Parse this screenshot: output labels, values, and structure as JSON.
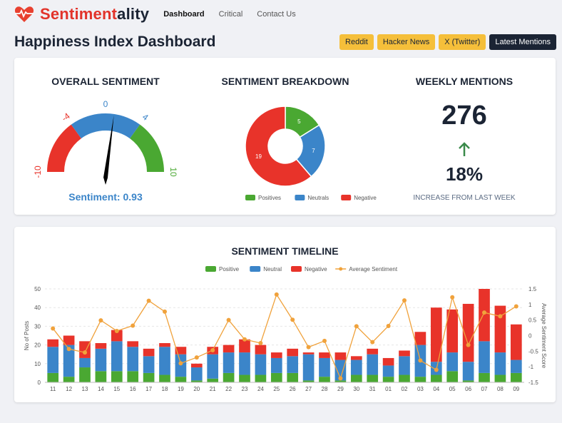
{
  "brand": {
    "name_red": "Sentiment",
    "name_dark": "ality"
  },
  "nav": [
    {
      "label": "Dashboard",
      "active": true
    },
    {
      "label": "Critical"
    },
    {
      "label": "Contact Us"
    }
  ],
  "page_title": "Happiness Index Dashboard",
  "buttons": [
    "Reddit",
    "Hacker News",
    "X (Twitter)",
    "Latest Mentions"
  ],
  "colors": {
    "positive": "#4aa832",
    "neutral": "#3b85c9",
    "negative": "#e8332a",
    "average": "#f0a23c",
    "button": "#f5bf3a",
    "dark": "#1b2434"
  },
  "overall": {
    "title": "OVERALL SENTIMENT",
    "ticks": [
      "-10",
      "-4",
      "0",
      "4",
      "10"
    ],
    "value": 0.93,
    "label": "Sentiment: 0.93",
    "range": [
      -10,
      10
    ]
  },
  "breakdown": {
    "title": "SENTIMENT BREAKDOWN",
    "slices": [
      {
        "name": "Positives",
        "value": 5
      },
      {
        "name": "Neutrals",
        "value": 7
      },
      {
        "name": "Negatives",
        "value": 19
      }
    ]
  },
  "weekly": {
    "title": "WEEKLY MENTIONS",
    "count": "276",
    "change": "18%",
    "caption": "INCREASE FROM LAST WEEK"
  },
  "chart_data": {
    "type": "bar",
    "title": "SENTIMENT TIMELINE",
    "stacked": true,
    "categories": [
      "11",
      "12",
      "13",
      "14",
      "15",
      "16",
      "17",
      "18",
      "19",
      "20",
      "21",
      "22",
      "23",
      "24",
      "25",
      "26",
      "27",
      "28",
      "29",
      "30",
      "31",
      "01",
      "02",
      "03",
      "04",
      "05",
      "06",
      "07",
      "08",
      "09"
    ],
    "series": [
      {
        "name": "Positive",
        "values": [
          5,
          3,
          8,
          6,
          6,
          6,
          5,
          4,
          3,
          1,
          2,
          5,
          4,
          4,
          5,
          5,
          1,
          3,
          1,
          4,
          4,
          3,
          4,
          3,
          4,
          6,
          1,
          5,
          4,
          5
        ]
      },
      {
        "name": "Neutral",
        "values": [
          14,
          17,
          5,
          12,
          16,
          13,
          9,
          15,
          12,
          7,
          13,
          11,
          12,
          11,
          8,
          9,
          14,
          10,
          11,
          8,
          11,
          6,
          10,
          17,
          7,
          10,
          10,
          17,
          12,
          7
        ]
      },
      {
        "name": "Negative",
        "values": [
          4,
          5,
          9,
          3,
          6,
          3,
          4,
          2,
          4,
          2,
          4,
          4,
          7,
          5,
          3,
          4,
          1,
          3,
          4,
          2,
          3,
          4,
          3,
          7,
          29,
          23,
          31,
          28,
          25,
          19
        ]
      },
      {
        "name": "Average Sentiment",
        "type": "line",
        "axis": "right",
        "values": [
          0.23,
          -0.43,
          -0.54,
          0.49,
          0.15,
          0.32,
          1.12,
          0.77,
          -0.89,
          -0.7,
          -0.47,
          0.5,
          -0.12,
          -0.24,
          1.32,
          0.51,
          -0.37,
          -0.17,
          -1.37,
          0.3,
          -0.21,
          0.31,
          1.13,
          -0.8,
          -1.1,
          1.23,
          -0.3,
          0.74,
          0.62,
          0.94
        ]
      }
    ],
    "ylabel": "No of Posts",
    "ylim": [
      0,
      50
    ],
    "yticks": [
      "0",
      "10",
      "20",
      "30",
      "40",
      "50"
    ],
    "y2label": "Average Sentiment Score",
    "y2lim": [
      -1.5,
      1.5
    ],
    "y2ticks": [
      "-1.5",
      "-1",
      "-0.5",
      "0",
      "0.5",
      "1",
      "1.5"
    ],
    "grid": true,
    "legend": "top"
  }
}
